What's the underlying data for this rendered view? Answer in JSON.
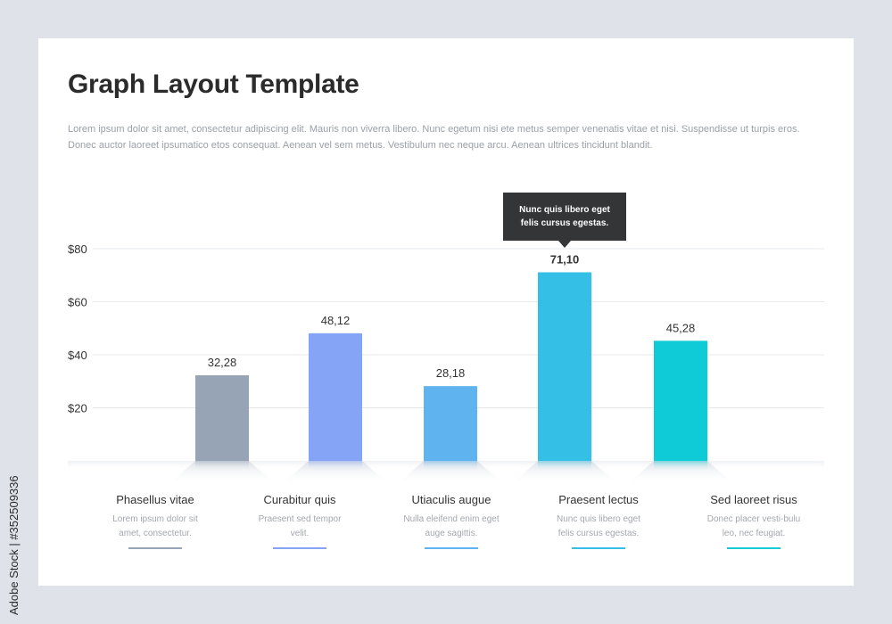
{
  "title": "Graph Layout Template",
  "intro": "Lorem ipsum dolor sit amet, consectetur adipiscing elit. Mauris non viverra libero. Nunc egetum nisi ete metus semper venenatis vitae et nisi. Suspendisse ut turpis eros. Donec auctor laoreet ipsumatico etos consequat. Aenean vel sem metus. Vestibulum nec neque arcu. Aenean ultrices tincidunt blandit.",
  "tooltip": "Nunc quis libero eget felis cursus egestas.",
  "watermark": "Adobe Stock | #352509336",
  "chart_data": {
    "type": "bar",
    "y_ticks": [
      "$20",
      "$40",
      "$60",
      "$80"
    ],
    "ylim": [
      0,
      80
    ],
    "categories": [
      "Phasellus vitae",
      "Curabitur quis",
      "Utiaculis augue",
      "Praesent lectus",
      "Sed laoreet risus"
    ],
    "values": [
      32.28,
      48.12,
      28.18,
      71.1,
      45.28
    ],
    "value_labels": [
      "32,28",
      "48,12",
      "28,18",
      "71,10",
      "45,28"
    ],
    "descriptions": [
      "Lorem ipsum dolor sit amet, consectetur.",
      "Praesent sed tempor velit.",
      "Nulla eleifend enim eget auge sagittis.",
      "Nunc quis libero eget felis cursus egestas.",
      "Donec placer vesti-bulu leo, nec feugiat."
    ],
    "colors": [
      "#97a4b6",
      "#86a4f6",
      "#5fb3ef",
      "#34bfe6",
      "#0fcbd8"
    ],
    "highlighted_index": 3,
    "grid": true
  }
}
